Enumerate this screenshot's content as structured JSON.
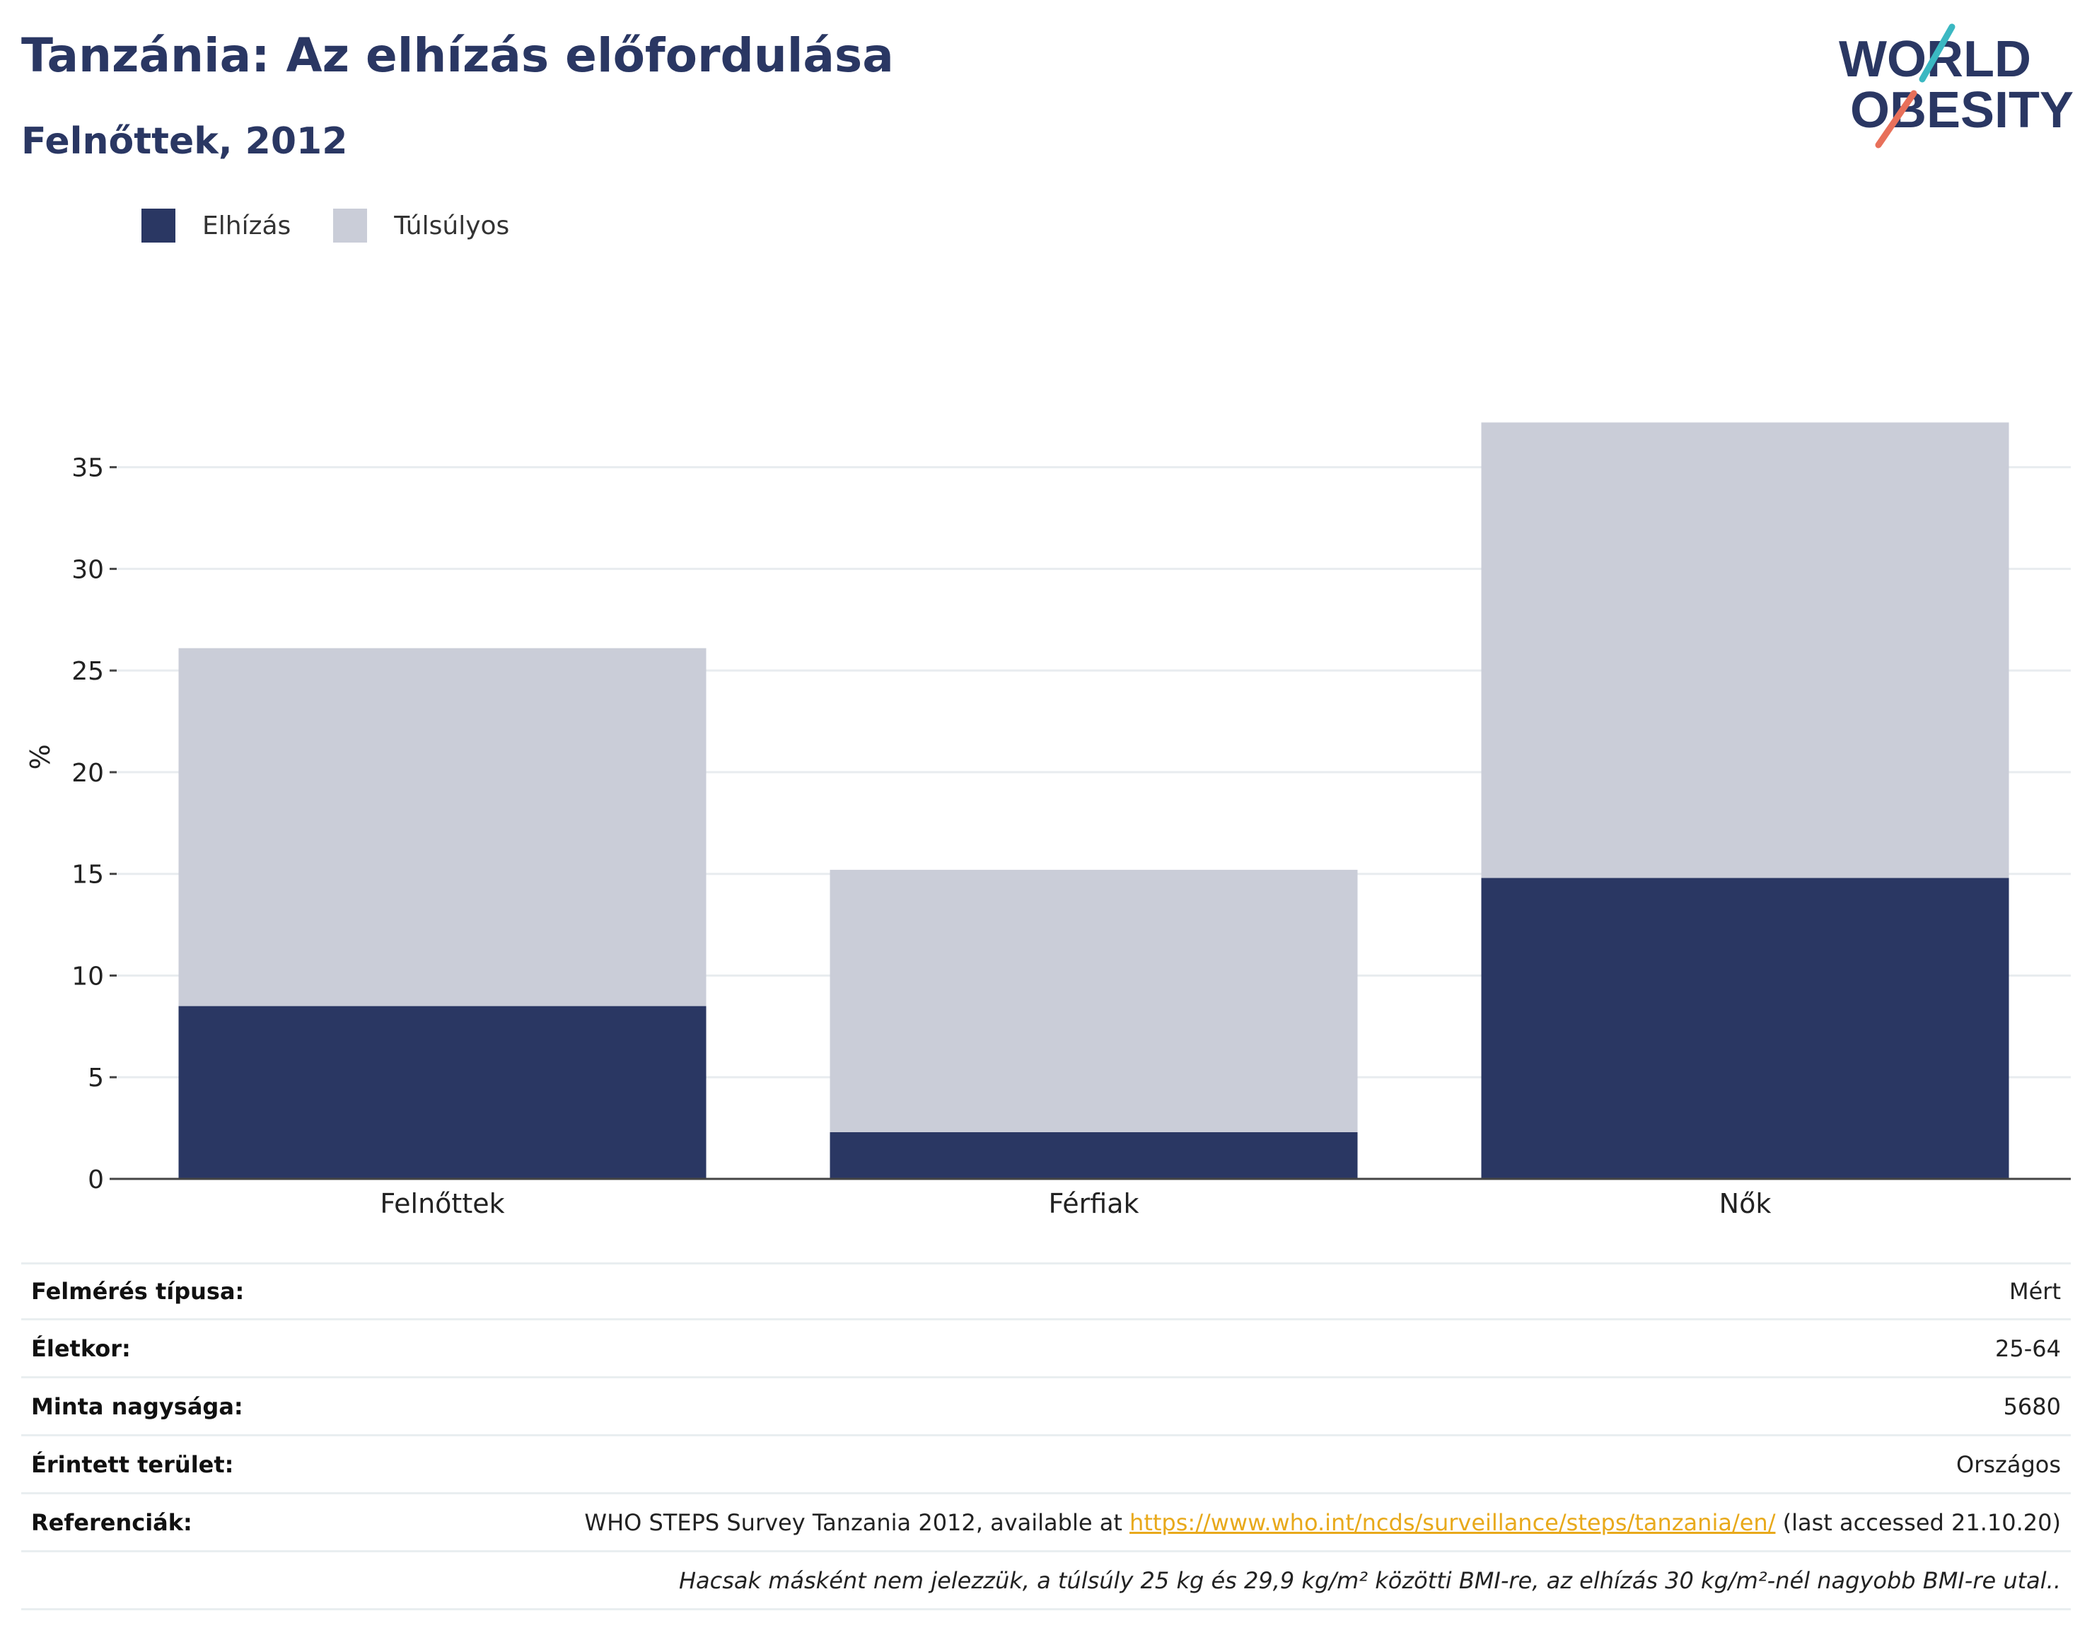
{
  "header": {
    "title": "Tanzánia: Az elhízás előfordulása",
    "subtitle": "Felnőttek, 2012"
  },
  "logo": {
    "line1": "WORLD",
    "line2": "OBESITY"
  },
  "colors": {
    "obesity": "#2a3763",
    "overweight": "#cacdd8",
    "title": "#2a3763",
    "link": "#e8a91b",
    "logo_teal": "#3bb8c2",
    "logo_coral": "#e8705a"
  },
  "chart_data": {
    "type": "bar",
    "stacked": true,
    "categories": [
      "Felnőttek",
      "Férfiak",
      "Nők"
    ],
    "series": [
      {
        "name": "Elhízás",
        "values": [
          8.5,
          2.3,
          14.8
        ]
      },
      {
        "name": "Túlsúlyos",
        "values": [
          17.6,
          12.9,
          22.4
        ]
      }
    ],
    "ylabel": "%",
    "yticks": [
      0,
      5,
      10,
      15,
      20,
      25,
      30,
      35
    ],
    "ylim": [
      0,
      38.5
    ],
    "grid": true,
    "legend_position": "top-left"
  },
  "info": {
    "rows": [
      {
        "label": "Felmérés típusa:",
        "value": "Mért"
      },
      {
        "label": "Életkor:",
        "value": "25-64"
      },
      {
        "label": "Minta nagysága:",
        "value": "5680"
      },
      {
        "label": "Érintett terület:",
        "value": "Országos"
      }
    ],
    "reference": {
      "label": "Referenciák:",
      "prefix": "WHO STEPS Survey Tanzania 2012, available at ",
      "link": "https://www.who.int/ncds/surveillance/steps/tanzania/en/",
      "suffix": " (last accessed 21.10.20)"
    },
    "note": "Hacsak másként nem jelezzük, a túlsúly 25 kg és 29,9 kg/m² közötti BMI-re, az elhízás 30 kg/m²-nél nagyobb BMI-re utal.."
  }
}
